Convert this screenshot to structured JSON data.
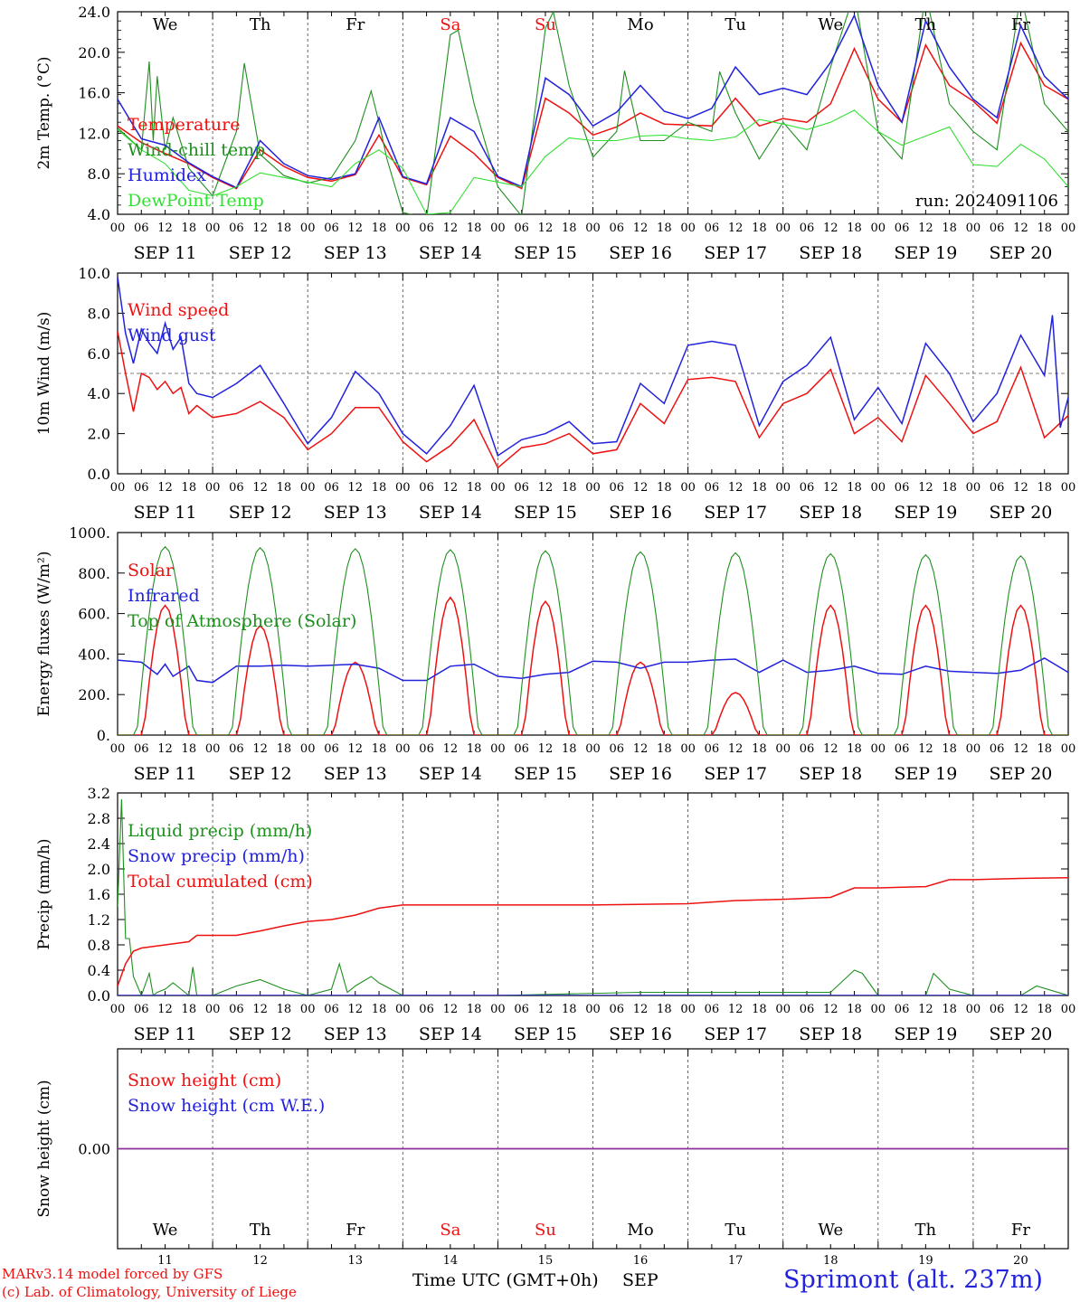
{
  "colors": {
    "red": "#ee1111",
    "green": "#1f8f1f",
    "blue": "#2222dd",
    "lightgreen": "#33e033",
    "purple": "#883399",
    "weekend": "#ee1111"
  },
  "days": {
    "weekday_labels": [
      "We",
      "Th",
      "Fr",
      "Sa",
      "Su",
      "Mo",
      "Tu",
      "We",
      "Th",
      "Fr"
    ],
    "weekend_flags": [
      false,
      false,
      false,
      true,
      true,
      false,
      false,
      false,
      false,
      false
    ],
    "date_labels": [
      "SEP 11",
      "SEP 12",
      "SEP 13",
      "SEP 14",
      "SEP 15",
      "SEP 16",
      "SEP 17",
      "SEP 18",
      "SEP 19",
      "SEP 20"
    ],
    "day_numbers": [
      "11",
      "12",
      "13",
      "14",
      "15",
      "16",
      "17",
      "18",
      "19",
      "20"
    ],
    "hour_ticks": [
      "00",
      "06",
      "12",
      "18"
    ],
    "end_tick": "00"
  },
  "chart_data": [
    {
      "type": "line",
      "id": "temp",
      "ylabel": "2m Temp. (°C)",
      "ylim": [
        4,
        26
      ],
      "yticks": [
        "4.0",
        "8.0",
        "12.0",
        "16.0",
        "20.0",
        "24.0"
      ],
      "annotation": "run: 2024091106",
      "x_unit": "hours since 2024-09-11 00 UTC",
      "series": [
        {
          "name": "Temperature",
          "color": "red",
          "x": [
            0,
            6,
            12,
            18,
            24,
            30,
            36,
            42,
            48,
            54,
            60,
            66,
            72,
            78,
            84,
            90,
            96,
            102,
            108,
            114,
            120,
            126,
            132,
            138,
            144,
            150,
            156,
            162,
            168,
            174,
            180,
            186,
            192,
            198,
            204,
            210,
            216,
            222,
            228,
            234,
            240
          ],
          "values": [
            13.6,
            11.8,
            10.6,
            9.5,
            8.0,
            6.8,
            11.0,
            9.2,
            8.0,
            7.6,
            8.3,
            12.6,
            8.0,
            7.2,
            12.5,
            10.6,
            8.0,
            6.8,
            16.6,
            15.0,
            12.6,
            13.5,
            15.0,
            13.8,
            13.7,
            13.6,
            16.6,
            13.6,
            14.4,
            14.0,
            16.0,
            22.0,
            16.5,
            14.0,
            22.4,
            18.0,
            16.3,
            13.9,
            22.6,
            18.0,
            16.5
          ]
        },
        {
          "name": "Wind-chill temp",
          "color": "green",
          "x": [
            0,
            6,
            8,
            9,
            10,
            12,
            14,
            18,
            24,
            30,
            32,
            36,
            42,
            48,
            54,
            60,
            64,
            66,
            68,
            72,
            78,
            84,
            86,
            90,
            96,
            102,
            108,
            110,
            114,
            120,
            126,
            128,
            132,
            138,
            144,
            150,
            152,
            156,
            162,
            168,
            174,
            180,
            186,
            192,
            198,
            204,
            210,
            216,
            222,
            228,
            234,
            240
          ],
          "values": [
            13.4,
            11.0,
            20.6,
            12.0,
            19.0,
            11.0,
            14.5,
            9.0,
            6.0,
            13.0,
            20.4,
            10.5,
            8.2,
            7.4,
            8.0,
            12.0,
            17.4,
            14.0,
            10.0,
            4.2,
            3.6,
            23.5,
            24.0,
            16.0,
            7.0,
            3.8,
            24.2,
            26.0,
            18.0,
            10.2,
            13.0,
            19.6,
            12.0,
            12.0,
            14.0,
            13.0,
            19.5,
            15.0,
            10.0,
            14.0,
            11.0,
            20.0,
            28.0,
            13.0,
            10.0,
            28.0,
            16.0,
            13.0,
            11.0,
            28.0,
            16.0,
            13.0
          ]
        },
        {
          "name": "Humidex",
          "color": "blue",
          "x": [
            0,
            6,
            12,
            18,
            24,
            30,
            36,
            42,
            48,
            54,
            60,
            66,
            72,
            78,
            84,
            90,
            96,
            102,
            108,
            114,
            120,
            126,
            132,
            138,
            144,
            150,
            156,
            162,
            168,
            174,
            180,
            186,
            192,
            198,
            204,
            210,
            216,
            222,
            228,
            234,
            240
          ],
          "values": [
            16.5,
            12.2,
            11.5,
            9.6,
            8.1,
            6.9,
            12.0,
            9.5,
            8.2,
            7.8,
            8.4,
            14.5,
            8.1,
            7.3,
            14.5,
            13.0,
            8.1,
            7.0,
            18.8,
            17.0,
            13.6,
            15.1,
            18.0,
            15.2,
            14.4,
            15.5,
            20.0,
            17.0,
            17.7,
            17.0,
            20.5,
            25.6,
            18.0,
            14.0,
            25.0,
            20.0,
            16.5,
            14.5,
            24.5,
            19.0,
            16.5
          ]
        },
        {
          "name": "DewPoint Temp",
          "color": "lightgreen",
          "x": [
            0,
            6,
            12,
            18,
            24,
            30,
            36,
            42,
            48,
            54,
            60,
            66,
            72,
            78,
            84,
            90,
            96,
            102,
            108,
            114,
            120,
            126,
            132,
            138,
            144,
            150,
            156,
            162,
            168,
            174,
            180,
            186,
            192,
            198,
            204,
            210,
            216,
            222,
            228,
            234,
            240
          ],
          "values": [
            13.2,
            11.0,
            9.5,
            6.6,
            6.0,
            7.0,
            8.5,
            8.0,
            7.5,
            7.0,
            9.5,
            11.0,
            9.0,
            4.0,
            4.2,
            8.0,
            7.5,
            7.0,
            10.3,
            12.3,
            12.0,
            12.0,
            12.5,
            12.6,
            12.2,
            12.0,
            12.4,
            14.3,
            13.8,
            13.2,
            14.0,
            15.3,
            13.0,
            11.5,
            12.5,
            13.5,
            9.4,
            9.2,
            11.6,
            10.0,
            7.0
          ]
        }
      ]
    },
    {
      "type": "line",
      "id": "wind",
      "ylabel": "10m Wind (m/s)",
      "ylim": [
        0,
        10
      ],
      "yticks": [
        "0.0",
        "2.0",
        "4.0",
        "6.0",
        "8.0",
        "10.0"
      ],
      "hline": 5,
      "series": [
        {
          "name": "Wind speed",
          "color": "red",
          "x": [
            0,
            2,
            4,
            6,
            8,
            10,
            12,
            14,
            16,
            18,
            20,
            24,
            30,
            36,
            42,
            48,
            54,
            60,
            66,
            72,
            78,
            84,
            90,
            96,
            102,
            108,
            114,
            120,
            126,
            132,
            138,
            144,
            150,
            156,
            162,
            168,
            174,
            180,
            186,
            192,
            198,
            204,
            210,
            216,
            222,
            228,
            234,
            240
          ],
          "values": [
            7.1,
            5.0,
            3.1,
            5.0,
            4.8,
            4.2,
            4.6,
            4.0,
            4.3,
            3.0,
            3.4,
            2.8,
            3.0,
            3.6,
            2.8,
            1.2,
            2.0,
            3.3,
            3.3,
            1.6,
            0.6,
            1.4,
            2.7,
            0.3,
            1.3,
            1.5,
            2.0,
            1.0,
            1.2,
            3.5,
            2.5,
            4.7,
            4.8,
            4.6,
            1.8,
            3.5,
            4.0,
            5.2,
            2.0,
            2.8,
            1.6,
            4.9,
            3.5,
            2.0,
            2.6,
            5.3,
            1.8,
            2.9
          ]
        },
        {
          "name": "Wind gust",
          "color": "blue",
          "x": [
            0,
            2,
            4,
            6,
            8,
            10,
            12,
            14,
            16,
            18,
            20,
            24,
            30,
            36,
            42,
            48,
            54,
            60,
            66,
            72,
            78,
            84,
            90,
            96,
            102,
            108,
            114,
            120,
            126,
            132,
            138,
            144,
            150,
            156,
            162,
            168,
            174,
            180,
            186,
            192,
            198,
            204,
            210,
            216,
            222,
            228,
            234,
            236,
            238,
            240
          ],
          "values": [
            9.8,
            7.0,
            5.5,
            7.2,
            6.5,
            6.0,
            7.5,
            6.2,
            6.8,
            4.5,
            4.0,
            3.8,
            4.5,
            5.4,
            3.5,
            1.5,
            2.8,
            5.1,
            4.0,
            2.0,
            1.0,
            2.4,
            4.4,
            0.9,
            1.7,
            2.0,
            2.6,
            1.5,
            1.6,
            4.5,
            3.5,
            6.4,
            6.6,
            6.4,
            2.4,
            4.6,
            5.4,
            6.8,
            2.7,
            4.3,
            2.5,
            6.5,
            5.0,
            2.6,
            4.0,
            6.9,
            4.9,
            7.9,
            2.3,
            3.8
          ]
        }
      ]
    },
    {
      "type": "line",
      "id": "energy",
      "ylabel": "Energy fluxes (W/m²)",
      "ylim": [
        0,
        1000
      ],
      "yticks": [
        "0.",
        "200.",
        "400.",
        "600.",
        "800.",
        "1000."
      ],
      "series": [
        {
          "name": "Solar",
          "color": "red",
          "daily_peak": [
            640,
            540,
            360,
            680,
            660,
            360,
            210,
            640,
            640,
            640
          ]
        },
        {
          "name": "Infrared",
          "color": "blue",
          "x": [
            0,
            6,
            10,
            12,
            14,
            18,
            20,
            24,
            30,
            36,
            42,
            48,
            54,
            60,
            66,
            72,
            78,
            84,
            90,
            96,
            102,
            108,
            114,
            120,
            126,
            132,
            138,
            144,
            150,
            156,
            162,
            168,
            174,
            180,
            186,
            192,
            198,
            204,
            210,
            216,
            222,
            228,
            234,
            240
          ],
          "values": [
            370,
            360,
            300,
            350,
            290,
            340,
            270,
            260,
            340,
            340,
            345,
            340,
            345,
            350,
            330,
            270,
            270,
            340,
            350,
            290,
            280,
            300,
            310,
            365,
            360,
            330,
            360,
            360,
            370,
            375,
            310,
            370,
            310,
            320,
            340,
            305,
            300,
            340,
            315,
            310,
            305,
            320,
            380,
            310
          ]
        },
        {
          "name": "Top of Atmosphere (Solar)",
          "color": "green",
          "daily_peak": [
            930,
            925,
            920,
            915,
            910,
            905,
            900,
            895,
            890,
            885
          ]
        }
      ]
    },
    {
      "type": "line",
      "id": "precip",
      "ylabel": "Precip (mm/h)",
      "ylim": [
        0,
        3.2
      ],
      "yticks": [
        "0.0",
        "0.4",
        "0.8",
        "1.2",
        "1.6",
        "2.0",
        "2.4",
        "2.8",
        "3.2"
      ],
      "series": [
        {
          "name": "Liquid precip (mm/h)",
          "color": "green",
          "x": [
            0,
            1,
            2,
            3,
            4,
            6,
            8,
            9,
            10,
            12,
            14,
            16,
            18,
            19,
            20,
            24,
            30,
            36,
            42,
            48,
            54,
            56,
            58,
            60,
            64,
            66,
            72,
            84,
            96,
            132,
            144,
            168,
            180,
            186,
            188,
            192,
            198,
            204,
            206,
            210,
            216,
            228,
            232,
            240
          ],
          "values": [
            1.4,
            3.1,
            0.9,
            0.9,
            0.3,
            0.0,
            0.35,
            0.0,
            0.05,
            0.1,
            0.2,
            0.1,
            0.0,
            0.45,
            0.0,
            0.0,
            0.15,
            0.25,
            0.1,
            0.0,
            0.1,
            0.5,
            0.05,
            0.15,
            0.3,
            0.2,
            0.0,
            0.0,
            0.0,
            0.05,
            0.05,
            0.05,
            0.05,
            0.4,
            0.35,
            0.0,
            0.0,
            0.0,
            0.35,
            0.1,
            0.0,
            0.0,
            0.15,
            0.0
          ]
        },
        {
          "name": "Snow precip (mm/h)",
          "color": "blue",
          "x": [
            0,
            240
          ],
          "values": [
            0,
            0
          ]
        },
        {
          "name": "Total cumulated (cm)",
          "color": "red",
          "x": [
            0,
            2,
            4,
            6,
            12,
            18,
            20,
            30,
            36,
            42,
            48,
            54,
            60,
            66,
            72,
            84,
            96,
            120,
            144,
            156,
            168,
            180,
            186,
            192,
            204,
            210,
            216,
            228,
            240
          ],
          "values": [
            0.15,
            0.5,
            0.7,
            0.75,
            0.8,
            0.85,
            0.95,
            0.95,
            1.02,
            1.1,
            1.17,
            1.2,
            1.27,
            1.38,
            1.43,
            1.43,
            1.43,
            1.43,
            1.45,
            1.5,
            1.52,
            1.55,
            1.7,
            1.7,
            1.72,
            1.83,
            1.83,
            1.85,
            1.86
          ]
        }
      ]
    },
    {
      "type": "line",
      "id": "snow",
      "ylabel": "Snow height (cm)",
      "ylim": [
        -1,
        1
      ],
      "yticks": [
        "0.00"
      ],
      "series": [
        {
          "name": "Snow height (cm)",
          "color": "red",
          "x": [
            0,
            240
          ],
          "values": [
            0,
            0
          ]
        },
        {
          "name": "Snow height (cm W.E.)",
          "color": "blue",
          "x": [
            0,
            240
          ],
          "values": [
            0,
            0
          ]
        }
      ]
    }
  ],
  "footer": {
    "model_line": "MARv3.14 model forced by GFS",
    "lab_line": "(c) Lab. of Climatology, University of Liege",
    "xlabel": "Time UTC (GMT+0h)",
    "month": "SEP",
    "station": "Sprimont (alt. 237m)"
  }
}
